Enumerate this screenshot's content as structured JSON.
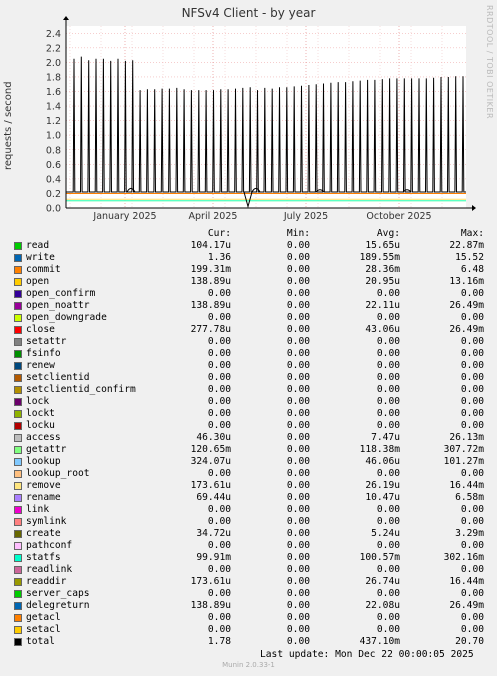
{
  "title": "NFSv4 Client - by year",
  "side_label": "RRDTOOL / TOBI OETIKER",
  "munin_version": "Munin 2.0.33-1",
  "last_update": "Last update:  Mon Dec 22 00:00:05 2025",
  "legend_headers": {
    "cur": "Cur:",
    "min": "Min:",
    "avg": "Avg:",
    "max": "Max:"
  },
  "chart_data": {
    "type": "line",
    "title": "NFSv4 Client - by year",
    "ylabel": "requests / second",
    "ylim": [
      0,
      2.5
    ],
    "yticks": [
      "0.0",
      "0.2",
      "0.4",
      "0.6",
      "0.8",
      "1.0",
      "1.2",
      "1.4",
      "1.6",
      "1.8",
      "2.0",
      "2.2",
      "2.4"
    ],
    "xticks": [
      "January 2025",
      "April 2025",
      "July 2025",
      "October 2025"
    ],
    "grid": true,
    "spike_series": {
      "name": "total",
      "baseline": 0.22,
      "peaks": [
        2.05,
        2.08,
        2.03,
        2.05,
        2.05,
        2.02,
        2.05,
        2.02,
        2.03,
        1.62,
        1.63,
        1.63,
        1.64,
        1.64,
        1.65,
        1.63,
        1.62,
        1.62,
        1.62,
        1.62,
        1.63,
        1.63,
        1.64,
        1.65,
        1.66,
        1.62,
        1.65,
        1.64,
        1.66,
        1.66,
        1.67,
        1.68,
        1.69,
        1.7,
        1.71,
        1.72,
        1.73,
        1.73,
        1.74,
        1.75,
        1.76,
        1.76,
        1.77,
        1.78,
        1.78,
        1.78,
        1.78,
        1.78,
        1.78,
        1.79,
        1.8,
        1.8,
        1.81,
        1.81
      ]
    },
    "flat_series": [
      {
        "name": "commit",
        "value": 0.2,
        "color": "#ff7f00"
      },
      {
        "name": "remove",
        "value": 0.12,
        "color": "#ffe066"
      },
      {
        "name": "getattr",
        "value": 0.1,
        "color": "#aaff66"
      },
      {
        "name": "statfs",
        "value": 0.1,
        "color": "#33ffcc"
      }
    ]
  },
  "series": [
    {
      "name": "read",
      "color": "#00cc00",
      "cur": "104.17u",
      "min": "0.00",
      "avg": "15.65u",
      "max": "22.87m"
    },
    {
      "name": "write",
      "color": "#0066b3",
      "cur": "1.36",
      "min": "0.00",
      "avg": "189.55m",
      "max": "15.52"
    },
    {
      "name": "commit",
      "color": "#ff8000",
      "cur": "199.31m",
      "min": "0.00",
      "avg": "28.36m",
      "max": "6.48"
    },
    {
      "name": "open",
      "color": "#ffcc00",
      "cur": "138.89u",
      "min": "0.00",
      "avg": "20.95u",
      "max": "13.16m"
    },
    {
      "name": "open_confirm",
      "color": "#330099",
      "cur": "0.00",
      "min": "0.00",
      "avg": "0.00",
      "max": "0.00"
    },
    {
      "name": "open_noattr",
      "color": "#990099",
      "cur": "138.89u",
      "min": "0.00",
      "avg": "22.11u",
      "max": "26.49m"
    },
    {
      "name": "open_downgrade",
      "color": "#ccff00",
      "cur": "0.00",
      "min": "0.00",
      "avg": "0.00",
      "max": "0.00"
    },
    {
      "name": "close",
      "color": "#ff0000",
      "cur": "277.78u",
      "min": "0.00",
      "avg": "43.06u",
      "max": "26.49m"
    },
    {
      "name": "setattr",
      "color": "#808080",
      "cur": "0.00",
      "min": "0.00",
      "avg": "0.00",
      "max": "0.00"
    },
    {
      "name": "fsinfo",
      "color": "#008f00",
      "cur": "0.00",
      "min": "0.00",
      "avg": "0.00",
      "max": "0.00"
    },
    {
      "name": "renew",
      "color": "#00487d",
      "cur": "0.00",
      "min": "0.00",
      "avg": "0.00",
      "max": "0.00"
    },
    {
      "name": "setclientid",
      "color": "#b35a00",
      "cur": "0.00",
      "min": "0.00",
      "avg": "0.00",
      "max": "0.00"
    },
    {
      "name": "setclientid_confirm",
      "color": "#b38f00",
      "cur": "0.00",
      "min": "0.00",
      "avg": "0.00",
      "max": "0.00"
    },
    {
      "name": "lock",
      "color": "#6b006b",
      "cur": "0.00",
      "min": "0.00",
      "avg": "0.00",
      "max": "0.00"
    },
    {
      "name": "lockt",
      "color": "#8fb300",
      "cur": "0.00",
      "min": "0.00",
      "avg": "0.00",
      "max": "0.00"
    },
    {
      "name": "locku",
      "color": "#b30000",
      "cur": "0.00",
      "min": "0.00",
      "avg": "0.00",
      "max": "0.00"
    },
    {
      "name": "access",
      "color": "#bebebe",
      "cur": "46.30u",
      "min": "0.00",
      "avg": "7.47u",
      "max": "26.13m"
    },
    {
      "name": "getattr",
      "color": "#80ff80",
      "cur": "120.65m",
      "min": "0.00",
      "avg": "118.38m",
      "max": "307.72m"
    },
    {
      "name": "lookup",
      "color": "#80c9ff",
      "cur": "324.07u",
      "min": "0.00",
      "avg": "46.06u",
      "max": "101.27m"
    },
    {
      "name": "lookup_root",
      "color": "#ffc080",
      "cur": "0.00",
      "min": "0.00",
      "avg": "0.00",
      "max": "0.00"
    },
    {
      "name": "remove",
      "color": "#ffe680",
      "cur": "173.61u",
      "min": "0.00",
      "avg": "26.19u",
      "max": "16.44m"
    },
    {
      "name": "rename",
      "color": "#aa80ff",
      "cur": "69.44u",
      "min": "0.00",
      "avg": "10.47u",
      "max": "6.58m"
    },
    {
      "name": "link",
      "color": "#ee00cc",
      "cur": "0.00",
      "min": "0.00",
      "avg": "0.00",
      "max": "0.00"
    },
    {
      "name": "symlink",
      "color": "#ff8080",
      "cur": "0.00",
      "min": "0.00",
      "avg": "0.00",
      "max": "0.00"
    },
    {
      "name": "create",
      "color": "#666600",
      "cur": "34.72u",
      "min": "0.00",
      "avg": "5.24u",
      "max": "3.29m"
    },
    {
      "name": "pathconf",
      "color": "#ffbfff",
      "cur": "0.00",
      "min": "0.00",
      "avg": "0.00",
      "max": "0.00"
    },
    {
      "name": "statfs",
      "color": "#00ffcc",
      "cur": "99.91m",
      "min": "0.00",
      "avg": "100.57m",
      "max": "302.16m"
    },
    {
      "name": "readlink",
      "color": "#cc6699",
      "cur": "0.00",
      "min": "0.00",
      "avg": "0.00",
      "max": "0.00"
    },
    {
      "name": "readdir",
      "color": "#999900",
      "cur": "173.61u",
      "min": "0.00",
      "avg": "26.74u",
      "max": "16.44m"
    },
    {
      "name": "server_caps",
      "color": "#00cc00",
      "cur": "0.00",
      "min": "0.00",
      "avg": "0.00",
      "max": "0.00"
    },
    {
      "name": "delegreturn",
      "color": "#0066b3",
      "cur": "138.89u",
      "min": "0.00",
      "avg": "22.08u",
      "max": "26.49m"
    },
    {
      "name": "getacl",
      "color": "#ff8000",
      "cur": "0.00",
      "min": "0.00",
      "avg": "0.00",
      "max": "0.00"
    },
    {
      "name": "setacl",
      "color": "#ffcc00",
      "cur": "0.00",
      "min": "0.00",
      "avg": "0.00",
      "max": "0.00"
    },
    {
      "name": "total",
      "color": "#000000",
      "cur": "1.78",
      "min": "0.00",
      "avg": "437.10m",
      "max": "20.70"
    }
  ]
}
